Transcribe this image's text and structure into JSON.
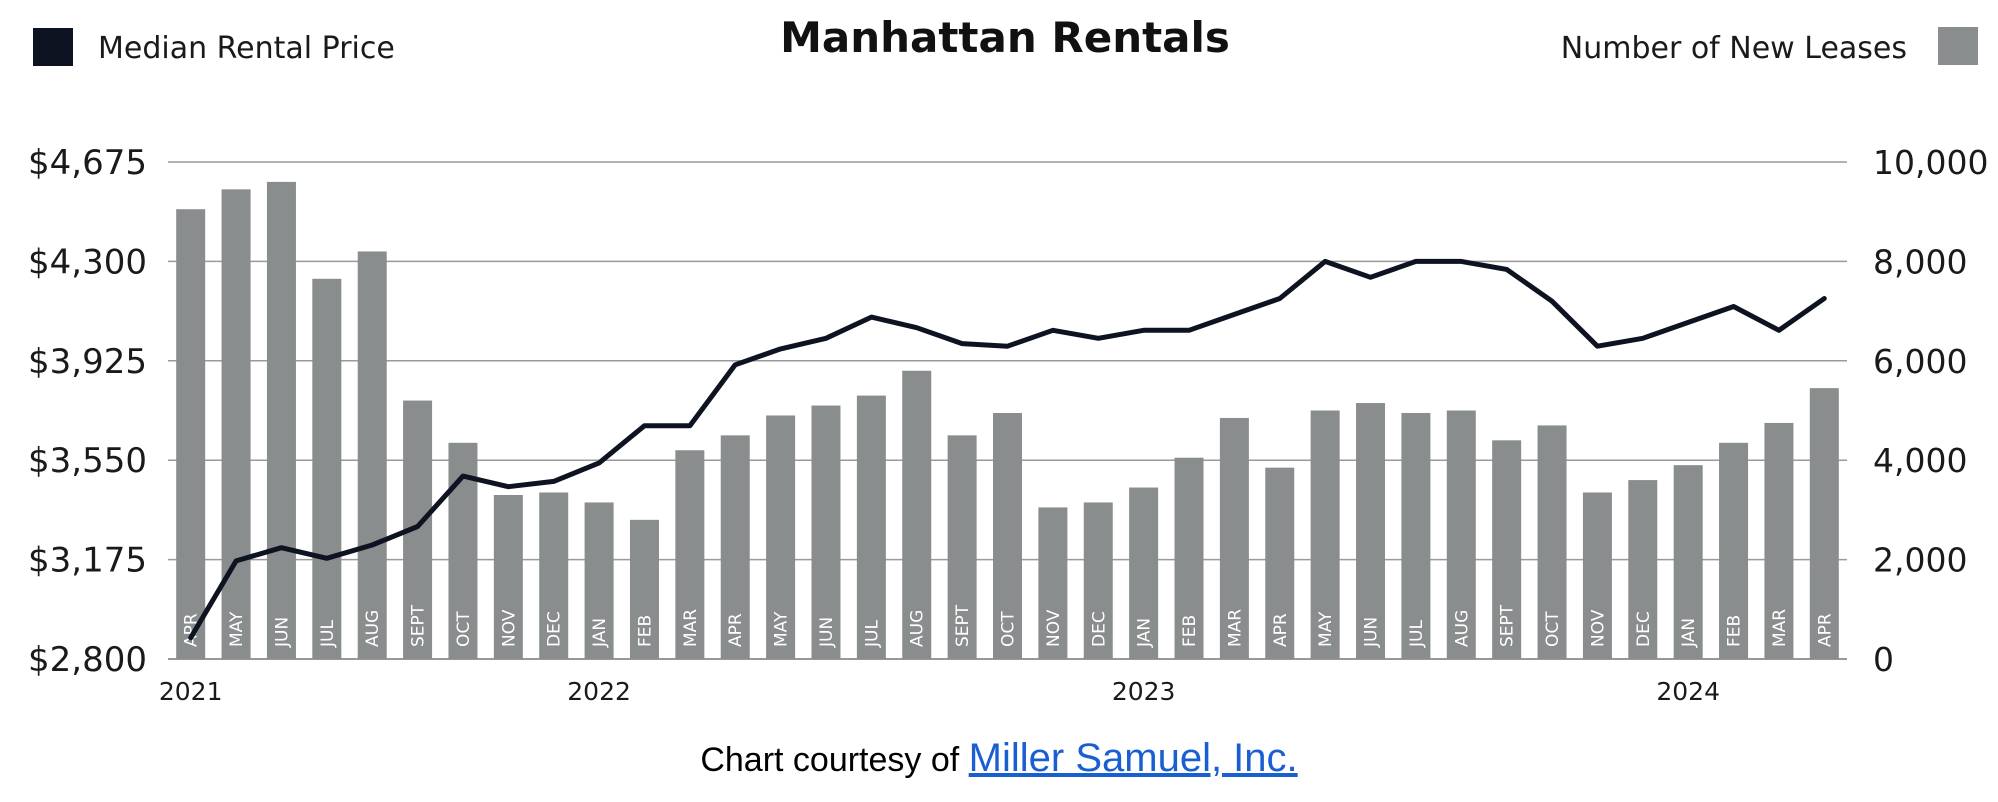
{
  "chart_data": {
    "type": "bar",
    "title": "Manhattan Rentals",
    "legend": {
      "left": {
        "label": "Median Rental Price",
        "color": "#0d1321"
      },
      "right": {
        "label": "Number of New Leases",
        "color": "#8a8d8d"
      }
    },
    "categories": [
      "APR",
      "MAY",
      "JUN",
      "JUL",
      "AUG",
      "SEPT",
      "OCT",
      "NOV",
      "DEC",
      "JAN",
      "FEB",
      "MAR",
      "APR",
      "MAY",
      "JUN",
      "JUL",
      "AUG",
      "SEPT",
      "OCT",
      "NOV",
      "DEC",
      "JAN",
      "FEB",
      "MAR",
      "APR",
      "MAY",
      "JUN",
      "JUL",
      "AUG",
      "SEPT",
      "OCT",
      "NOV",
      "DEC",
      "JAN",
      "FEB",
      "MAR",
      "APR"
    ],
    "years": [
      {
        "label": "2021",
        "index": 0
      },
      {
        "label": "2022",
        "index": 9
      },
      {
        "label": "2023",
        "index": 21
      },
      {
        "label": "2024",
        "index": 33
      }
    ],
    "series": [
      {
        "name": "Number of New Leases",
        "type": "bar",
        "axis": "right",
        "color": "#8a8d8d",
        "values": [
          9050,
          9450,
          9600,
          7650,
          8200,
          5200,
          4350,
          3300,
          3350,
          3150,
          2800,
          4200,
          4500,
          4900,
          5100,
          5300,
          5800,
          4500,
          4950,
          3050,
          3150,
          3450,
          4050,
          4850,
          3850,
          5000,
          5150,
          4950,
          5000,
          4400,
          4700,
          3350,
          3600,
          3900,
          4350,
          4750,
          5450
        ]
      },
      {
        "name": "Median Rental Price",
        "type": "line",
        "axis": "left",
        "color": "#0d1321",
        "values": [
          2880,
          3170,
          3220,
          3180,
          3230,
          3300,
          3490,
          3450,
          3470,
          3540,
          3680,
          3680,
          3910,
          3970,
          4010,
          4090,
          4050,
          3990,
          3980,
          4040,
          4010,
          4040,
          4040,
          4100,
          4160,
          4300,
          4240,
          4300,
          4300,
          4270,
          4150,
          3980,
          4010,
          4070,
          4130,
          4040,
          4160
        ]
      }
    ],
    "left_axis": {
      "min": 2800,
      "max": 4675,
      "ticks": [
        "$2,800",
        "$3,175",
        "$3,550",
        "$3,925",
        "$4,300",
        "$4,675"
      ]
    },
    "right_axis": {
      "min": 0,
      "max": 10000,
      "ticks": [
        "0",
        "2,000",
        "4,000",
        "6,000",
        "8,000",
        "10,000"
      ]
    },
    "grid": true
  },
  "footer": {
    "prefix": "Chart courtesy of ",
    "link_text": "Miller Samuel, Inc."
  }
}
